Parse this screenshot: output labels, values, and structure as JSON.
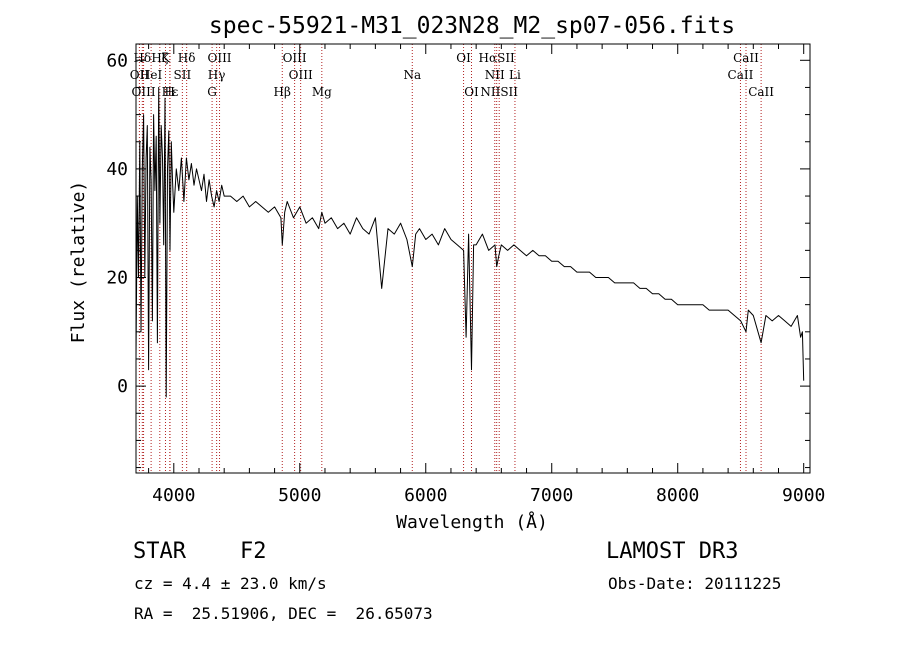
{
  "chart_data": {
    "type": "line",
    "title": "spec-55921-M31_023N28_M2_sp07-056.fits",
    "xlabel": "Wavelength (Å)",
    "ylabel": "Flux (relative)",
    "xlim": [
      3700,
      9050
    ],
    "ylim": [
      -16,
      63
    ],
    "x_ticks": [
      4000,
      5000,
      6000,
      7000,
      8000,
      9000
    ],
    "y_ticks": [
      0,
      20,
      40,
      60
    ],
    "series": [
      {
        "name": "flux",
        "x": [
          3700,
          3710,
          3720,
          3730,
          3740,
          3750,
          3760,
          3770,
          3780,
          3790,
          3800,
          3810,
          3820,
          3830,
          3840,
          3850,
          3860,
          3870,
          3880,
          3890,
          3900,
          3910,
          3920,
          3930,
          3940,
          3950,
          3960,
          3970,
          3980,
          3990,
          4000,
          4020,
          4040,
          4060,
          4080,
          4100,
          4120,
          4140,
          4160,
          4180,
          4200,
          4220,
          4240,
          4260,
          4280,
          4300,
          4320,
          4340,
          4360,
          4380,
          4400,
          4450,
          4500,
          4550,
          4600,
          4650,
          4700,
          4750,
          4800,
          4850,
          4861,
          4880,
          4900,
          4950,
          5000,
          5050,
          5100,
          5150,
          5175,
          5200,
          5250,
          5300,
          5350,
          5400,
          5450,
          5500,
          5550,
          5600,
          5650,
          5700,
          5750,
          5800,
          5850,
          5893,
          5920,
          5950,
          6000,
          6050,
          6100,
          6150,
          6200,
          6250,
          6300,
          6320,
          6340,
          6363,
          6380,
          6400,
          6450,
          6500,
          6550,
          6563,
          6580,
          6600,
          6650,
          6700,
          6750,
          6800,
          6850,
          6900,
          6950,
          7000,
          7050,
          7100,
          7150,
          7200,
          7250,
          7300,
          7350,
          7400,
          7450,
          7500,
          7550,
          7600,
          7650,
          7700,
          7750,
          7800,
          7850,
          7900,
          7950,
          8000,
          8050,
          8100,
          8150,
          8200,
          8250,
          8300,
          8350,
          8400,
          8450,
          8500,
          8542,
          8560,
          8600,
          8662,
          8700,
          8750,
          8800,
          8850,
          8900,
          8950,
          8975,
          8990,
          9000
        ],
        "y": [
          5,
          35,
          20,
          45,
          10,
          40,
          50,
          20,
          42,
          48,
          3,
          44,
          38,
          12,
          50,
          36,
          46,
          8,
          55,
          30,
          48,
          42,
          26,
          53,
          -2,
          40,
          47,
          25,
          45,
          38,
          32,
          40,
          36,
          42,
          34,
          42,
          38,
          41,
          37,
          40,
          38,
          36,
          39,
          34,
          38,
          35,
          33,
          36,
          34,
          37,
          35,
          35,
          34,
          35,
          33,
          34,
          33,
          32,
          33,
          31,
          26,
          32,
          34,
          31,
          33,
          30,
          31,
          29,
          32,
          30,
          31,
          29,
          30,
          28,
          31,
          29,
          28,
          31,
          18,
          29,
          28,
          30,
          27,
          22,
          28,
          29,
          27,
          28,
          26,
          29,
          27,
          26,
          25,
          9,
          28,
          3,
          26,
          26,
          28,
          25,
          26,
          22,
          24,
          26,
          25,
          26,
          25,
          24,
          25,
          24,
          24,
          23,
          23,
          22,
          22,
          21,
          21,
          21,
          20,
          20,
          20,
          19,
          19,
          19,
          19,
          18,
          18,
          17,
          17,
          16,
          16,
          15,
          15,
          15,
          15,
          15,
          14,
          14,
          14,
          14,
          13,
          12,
          10,
          14,
          13,
          8,
          13,
          12,
          13,
          12,
          11,
          13,
          9,
          10,
          1
        ]
      }
    ],
    "lines": [
      {
        "name": "Hδ",
        "wave": 3750,
        "row": 0
      },
      {
        "name": "Hζ",
        "wave": 3889,
        "row": 0
      },
      {
        "name": "K",
        "wave": 3934,
        "row": 0
      },
      {
        "name": "Hδ",
        "wave": 4102,
        "row": 0
      },
      {
        "name": "OIII",
        "wave": 4363,
        "row": 0
      },
      {
        "name": "OIII",
        "wave": 4959,
        "row": 0
      },
      {
        "name": "OI",
        "wave": 6300,
        "row": 0
      },
      {
        "name": "HαSII",
        "wave": 6563,
        "row": 0
      },
      {
        "name": "CaII",
        "wave": 8542,
        "row": 0
      },
      {
        "name": "OII",
        "wave": 3727,
        "row": 1
      },
      {
        "name": "HeI",
        "wave": 3820,
        "row": 1
      },
      {
        "name": "SII",
        "wave": 4068,
        "row": 1
      },
      {
        "name": "Hγ",
        "wave": 4340,
        "row": 1
      },
      {
        "name": "OIII",
        "wave": 5007,
        "row": 1
      },
      {
        "name": "Na",
        "wave": 5893,
        "row": 1
      },
      {
        "name": "NII",
        "wave": 6548,
        "row": 1
      },
      {
        "name": "Li",
        "wave": 6708,
        "row": 1
      },
      {
        "name": "CaII",
        "wave": 8498,
        "row": 1
      },
      {
        "name": "OIII",
        "wave": 3760,
        "row": 2
      },
      {
        "name": "Hε",
        "wave": 3970,
        "row": 2
      },
      {
        "name": "H",
        "wave": 3968,
        "row": 2
      },
      {
        "name": "G",
        "wave": 4304,
        "row": 2
      },
      {
        "name": "Hβ",
        "wave": 4861,
        "row": 2
      },
      {
        "name": "Mg",
        "wave": 5175,
        "row": 2
      },
      {
        "name": "OI",
        "wave": 6363,
        "row": 2
      },
      {
        "name": "NIISII",
        "wave": 6583,
        "row": 2
      },
      {
        "name": "CaII",
        "wave": 8662,
        "row": 2
      }
    ]
  },
  "info": {
    "object_class": "STAR",
    "subclass": "F2",
    "redshift": "cz = 4.4 ± 23.0 km/s",
    "coords": "RA =  25.51906, DEC =  26.65073",
    "survey": "LAMOST DR3",
    "obs_date": "Obs-Date: 20111225"
  },
  "colors": {
    "axis": "#000000",
    "spectrum": "#000000",
    "marker": "#b22222"
  }
}
